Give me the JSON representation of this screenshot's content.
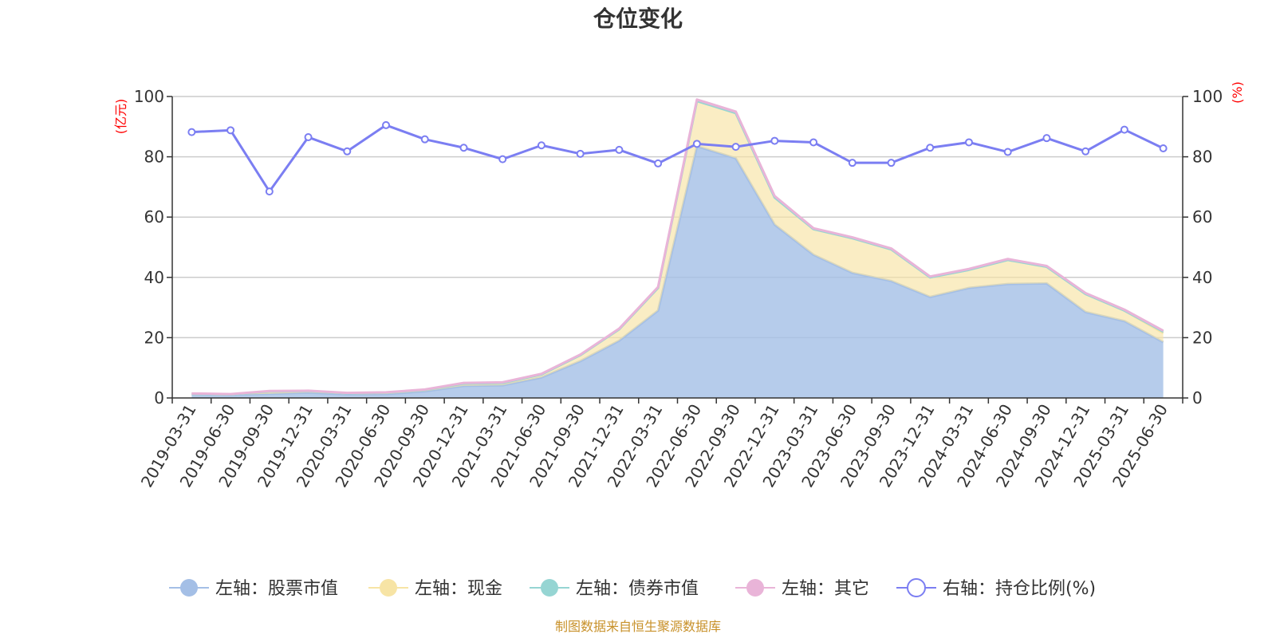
{
  "chart_data": {
    "type": "area",
    "title": "仓位变化",
    "left_axis_unit": "(亿元)",
    "right_axis_unit": "(%)",
    "left_axis": {
      "min": 0,
      "max": 100,
      "ticks": [
        "0",
        "20",
        "40",
        "60",
        "80",
        "100"
      ]
    },
    "right_axis": {
      "min": 0,
      "max": 100,
      "ticks": [
        "0",
        "20",
        "40",
        "60",
        "80",
        "100"
      ]
    },
    "grid": true,
    "legend_position": "bottom",
    "categories": [
      "2019-03-31",
      "2019-06-30",
      "2019-09-30",
      "2019-12-31",
      "2020-03-31",
      "2020-06-30",
      "2020-09-30",
      "2020-12-31",
      "2021-03-31",
      "2021-06-30",
      "2021-09-30",
      "2021-12-31",
      "2022-03-31",
      "2022-06-30",
      "2022-09-30",
      "2022-12-31",
      "2023-03-31",
      "2023-06-30",
      "2023-09-30",
      "2023-12-31",
      "2024-03-31",
      "2024-06-30",
      "2024-09-30",
      "2024-12-31",
      "2025-03-31",
      "2025-06-30"
    ],
    "series": [
      {
        "name": "左轴：股票市值",
        "axis": "left",
        "kind": "stacked-area",
        "color": "#a4bfe6",
        "values": [
          1.2,
          1.0,
          1.4,
          1.8,
          1.2,
          1.3,
          2.2,
          4.0,
          4.2,
          6.8,
          12.2,
          19.0,
          29.0,
          83.5,
          79.5,
          57.5,
          47.5,
          41.5,
          38.8,
          33.5,
          36.5,
          37.8,
          38.0,
          28.5,
          25.5,
          18.5
        ]
      },
      {
        "name": "左轴：现金",
        "axis": "left",
        "kind": "stacked-area",
        "color": "#f7e4a5",
        "values": [
          0.2,
          0.2,
          0.8,
          0.5,
          0.4,
          0.5,
          0.5,
          0.8,
          0.8,
          1.0,
          2.0,
          3.8,
          7.5,
          15.0,
          15.0,
          9.0,
          8.5,
          11.5,
          10.5,
          6.5,
          6.0,
          8.0,
          5.5,
          6.0,
          3.5,
          3.0
        ]
      },
      {
        "name": "左轴：债券市值",
        "axis": "left",
        "kind": "stacked-area",
        "color": "#96d5d3",
        "values": [
          0,
          0,
          0,
          0,
          0,
          0,
          0,
          0,
          0,
          0,
          0,
          0,
          0,
          0,
          0,
          0,
          0,
          0,
          0,
          0,
          0,
          0,
          0,
          0,
          0,
          0.5
        ]
      },
      {
        "name": "左轴：其它",
        "axis": "left",
        "kind": "stacked-area",
        "color": "#e9b4d8",
        "values": [
          0.1,
          0.1,
          0.1,
          0.1,
          0.1,
          0.1,
          0.1,
          0.2,
          0.2,
          0.2,
          0.2,
          0.2,
          0.3,
          0.5,
          0.5,
          0.5,
          0.3,
          0.3,
          0.3,
          0.3,
          0.3,
          0.3,
          0.3,
          0.3,
          0.3,
          0.3
        ]
      },
      {
        "name": "右轴：持仓比例(%)",
        "axis": "right",
        "kind": "line",
        "color": "#7b7ef2",
        "values": [
          88.2,
          88.8,
          68.5,
          86.5,
          81.8,
          90.5,
          85.8,
          83.0,
          79.2,
          83.8,
          81.0,
          82.3,
          77.8,
          84.3,
          83.3,
          85.3,
          84.8,
          78.0,
          78.0,
          83.0,
          84.8,
          81.6,
          86.2,
          81.8,
          89.0,
          82.8
        ]
      }
    ],
    "source_note": "制图数据来自恒生聚源数据库"
  }
}
